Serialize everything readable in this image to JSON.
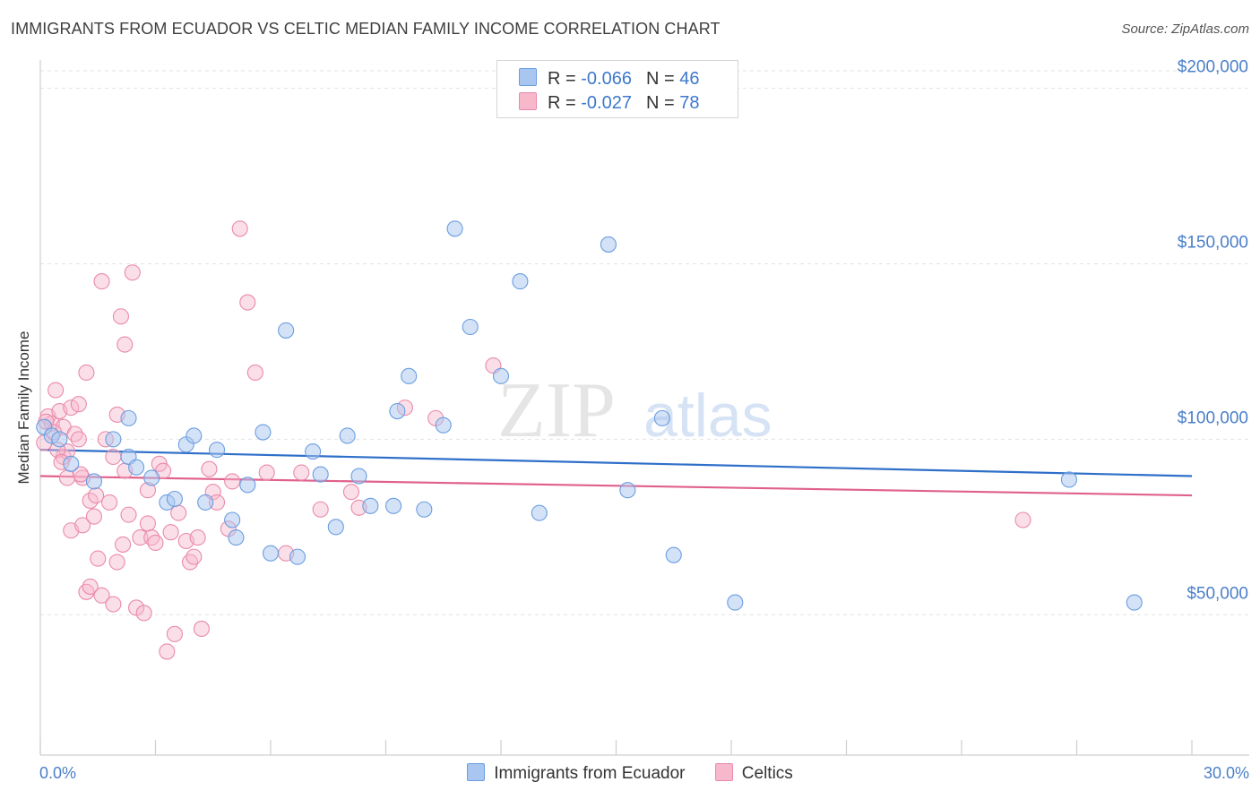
{
  "title": "IMMIGRANTS FROM ECUADOR VS CELTIC MEDIAN FAMILY INCOME CORRELATION CHART",
  "source": "Source: ZipAtlas.com",
  "watermark": {
    "zip": "ZIP",
    "atlas": "atlas"
  },
  "legend": {
    "r_label": "R =",
    "n_label": "N =",
    "series": [
      {
        "r": "-0.066",
        "n": "46"
      },
      {
        "r": "-0.027",
        "n": "78"
      }
    ]
  },
  "colors": {
    "ecuador_fill": "#a9c6f0",
    "ecuador_stroke": "#6a9ee0",
    "ecuador_line": "#2f6fc9",
    "celtic_fill": "#f7b8cc",
    "celtic_stroke": "#e98aaa",
    "celtic_line": "#e0608c",
    "axis_text": "#4a7fc9"
  },
  "chart_data": {
    "type": "scatter",
    "title": "IMMIGRANTS FROM ECUADOR VS CELTIC MEDIAN FAMILY INCOME CORRELATION CHART",
    "xlabel": "",
    "ylabel": "Median Family Income",
    "xlim": [
      0,
      30
    ],
    "ylim": [
      10000,
      205000
    ],
    "x_tick_labels": [
      "0.0%",
      "30.0%"
    ],
    "y_ticks": [
      50000,
      100000,
      150000,
      200000
    ],
    "y_tick_labels": [
      "$50,000",
      "$100,000",
      "$150,000",
      "$200,000"
    ],
    "grid": "horizontal dashed",
    "legend_position": "top-center",
    "bottom_legend": [
      "Immigrants from Ecuador",
      "Celtics"
    ],
    "series": [
      {
        "name": "Immigrants from Ecuador",
        "trend": {
          "x": [
            0,
            30
          ],
          "y": [
            97000,
            89500
          ]
        },
        "points": [
          [
            0.1,
            103500
          ],
          [
            0.3,
            101000
          ],
          [
            0.5,
            100000
          ],
          [
            0.8,
            93000
          ],
          [
            1.4,
            88000
          ],
          [
            1.9,
            100000
          ],
          [
            2.3,
            95000
          ],
          [
            2.3,
            106000
          ],
          [
            2.5,
            92000
          ],
          [
            2.9,
            89000
          ],
          [
            3.3,
            82000
          ],
          [
            3.5,
            83000
          ],
          [
            3.8,
            98500
          ],
          [
            4.0,
            101000
          ],
          [
            4.3,
            82000
          ],
          [
            4.6,
            97000
          ],
          [
            5.0,
            77000
          ],
          [
            5.1,
            72000
          ],
          [
            5.4,
            87000
          ],
          [
            5.8,
            102000
          ],
          [
            6.0,
            67500
          ],
          [
            6.4,
            131000
          ],
          [
            6.7,
            66500
          ],
          [
            7.1,
            96500
          ],
          [
            7.3,
            90000
          ],
          [
            7.7,
            75000
          ],
          [
            8.0,
            101000
          ],
          [
            8.3,
            89500
          ],
          [
            8.6,
            81000
          ],
          [
            9.2,
            81000
          ],
          [
            9.3,
            108000
          ],
          [
            9.6,
            118000
          ],
          [
            10.0,
            80000
          ],
          [
            10.5,
            104000
          ],
          [
            10.8,
            160000
          ],
          [
            11.2,
            132000
          ],
          [
            12.0,
            118000
          ],
          [
            12.5,
            145000
          ],
          [
            13.0,
            79000
          ],
          [
            14.8,
            155500
          ],
          [
            15.3,
            85500
          ],
          [
            16.2,
            106000
          ],
          [
            16.5,
            67000
          ],
          [
            18.1,
            53500
          ],
          [
            26.8,
            88500
          ],
          [
            28.5,
            53500
          ]
        ]
      },
      {
        "name": "Celtics",
        "trend": {
          "x": [
            0,
            30
          ],
          "y": [
            89500,
            84000
          ]
        },
        "points": [
          [
            0.1,
            99000
          ],
          [
            0.2,
            106500
          ],
          [
            0.3,
            104500
          ],
          [
            0.4,
            114000
          ],
          [
            0.5,
            108000
          ],
          [
            0.6,
            103500
          ],
          [
            0.6,
            95000
          ],
          [
            0.7,
            96500
          ],
          [
            0.7,
            89000
          ],
          [
            0.8,
            109000
          ],
          [
            0.8,
            74000
          ],
          [
            0.9,
            101500
          ],
          [
            1.0,
            110000
          ],
          [
            1.0,
            100000
          ],
          [
            1.1,
            89000
          ],
          [
            1.1,
            75500
          ],
          [
            1.2,
            119000
          ],
          [
            1.2,
            56500
          ],
          [
            1.3,
            58000
          ],
          [
            1.3,
            82500
          ],
          [
            1.4,
            78000
          ],
          [
            1.5,
            66000
          ],
          [
            1.6,
            145000
          ],
          [
            1.6,
            55500
          ],
          [
            1.7,
            100000
          ],
          [
            1.8,
            82000
          ],
          [
            1.9,
            95000
          ],
          [
            1.9,
            53000
          ],
          [
            2.0,
            107000
          ],
          [
            2.0,
            65000
          ],
          [
            2.1,
            135000
          ],
          [
            2.2,
            127000
          ],
          [
            2.2,
            91000
          ],
          [
            2.3,
            78500
          ],
          [
            2.4,
            147500
          ],
          [
            2.5,
            52000
          ],
          [
            2.6,
            72000
          ],
          [
            2.7,
            50500
          ],
          [
            2.8,
            85500
          ],
          [
            2.8,
            76000
          ],
          [
            2.9,
            72000
          ],
          [
            3.0,
            70500
          ],
          [
            3.1,
            93000
          ],
          [
            3.2,
            91000
          ],
          [
            3.3,
            39500
          ],
          [
            3.4,
            73500
          ],
          [
            3.5,
            44500
          ],
          [
            3.8,
            71000
          ],
          [
            3.9,
            65000
          ],
          [
            4.0,
            66500
          ],
          [
            4.1,
            72000
          ],
          [
            4.2,
            46000
          ],
          [
            4.4,
            91500
          ],
          [
            4.5,
            85000
          ],
          [
            4.6,
            82000
          ],
          [
            4.9,
            74500
          ],
          [
            5.2,
            160000
          ],
          [
            5.4,
            139000
          ],
          [
            5.6,
            119000
          ],
          [
            5.9,
            90500
          ],
          [
            6.4,
            67500
          ],
          [
            6.8,
            90500
          ],
          [
            8.1,
            85000
          ],
          [
            8.3,
            80500
          ],
          [
            9.5,
            109000
          ],
          [
            10.3,
            106000
          ],
          [
            11.8,
            121000
          ],
          [
            25.6,
            77000
          ],
          [
            0.15,
            105000
          ],
          [
            0.35,
            102000
          ],
          [
            0.45,
            97000
          ],
          [
            0.55,
            93500
          ],
          [
            1.05,
            90000
          ],
          [
            1.45,
            84000
          ],
          [
            2.15,
            70000
          ],
          [
            3.6,
            79000
          ],
          [
            5.0,
            88000
          ],
          [
            7.3,
            80000
          ]
        ]
      }
    ]
  }
}
